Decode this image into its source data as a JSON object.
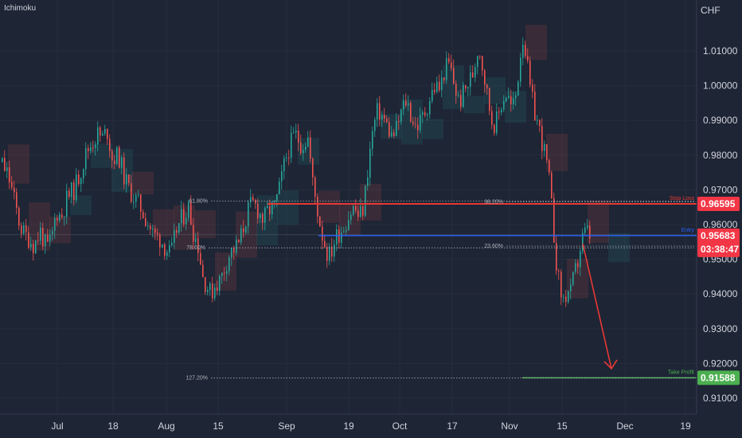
{
  "chart_data": {
    "type": "candlestick",
    "indicator_label": "Ichimoku",
    "currency": "CHF",
    "x_tick_labels": [
      "Jul",
      "18",
      "Aug",
      "15",
      "Sep",
      "19",
      "Oct",
      "17",
      "Nov",
      "15",
      "Dec",
      "19"
    ],
    "y_tick_labels": [
      "1.01000",
      "1.00000",
      "0.99000",
      "0.98000",
      "0.97000",
      "0.96000",
      "0.95000",
      "0.94000",
      "0.93000",
      "0.92000",
      "0.91000"
    ],
    "ylim": [
      0.9035,
      1.0195
    ],
    "colors": {
      "up": "#26a69a",
      "down": "#ef5350",
      "stop": "#e53935",
      "entry": "#2962ff",
      "target": "#4caf50",
      "price_tag": "#f23645",
      "background": "#1e2535"
    },
    "price_path": [
      [
        0,
        0.978
      ],
      [
        10,
        0.974
      ],
      [
        18,
        0.966
      ],
      [
        24,
        0.96
      ],
      [
        30,
        0.957
      ],
      [
        36,
        0.956
      ],
      [
        42,
        0.954
      ],
      [
        50,
        0.958
      ],
      [
        58,
        0.953
      ],
      [
        64,
        0.956
      ],
      [
        70,
        0.964
      ],
      [
        76,
        0.962
      ],
      [
        84,
        0.968
      ],
      [
        92,
        0.97
      ],
      [
        100,
        0.975
      ],
      [
        108,
        0.981
      ],
      [
        116,
        0.984
      ],
      [
        122,
        0.986
      ],
      [
        128,
        0.985
      ],
      [
        134,
        0.987
      ],
      [
        140,
        0.979
      ],
      [
        148,
        0.98
      ],
      [
        156,
        0.973
      ],
      [
        162,
        0.97
      ],
      [
        170,
        0.967
      ],
      [
        178,
        0.964
      ],
      [
        186,
        0.96
      ],
      [
        192,
        0.957
      ],
      [
        200,
        0.956
      ],
      [
        208,
        0.953
      ],
      [
        214,
        0.951
      ],
      [
        220,
        0.958
      ],
      [
        228,
        0.962
      ],
      [
        236,
        0.965
      ],
      [
        242,
        0.958
      ],
      [
        248,
        0.954
      ],
      [
        254,
        0.945
      ],
      [
        260,
        0.942
      ],
      [
        264,
        0.94
      ],
      [
        270,
        0.943
      ],
      [
        276,
        0.944
      ],
      [
        282,
        0.948
      ],
      [
        288,
        0.952
      ],
      [
        294,
        0.953
      ],
      [
        300,
        0.955
      ],
      [
        306,
        0.96
      ],
      [
        312,
        0.965
      ],
      [
        318,
        0.966
      ],
      [
        324,
        0.964
      ],
      [
        330,
        0.961
      ],
      [
        336,
        0.964
      ],
      [
        344,
        0.965
      ],
      [
        350,
        0.97
      ],
      [
        356,
        0.977
      ],
      [
        362,
        0.982
      ],
      [
        370,
        0.986
      ],
      [
        378,
        0.983
      ],
      [
        386,
        0.985
      ],
      [
        392,
        0.972
      ],
      [
        398,
        0.964
      ],
      [
        404,
        0.957
      ],
      [
        410,
        0.952
      ],
      [
        414,
        0.951
      ],
      [
        420,
        0.956
      ],
      [
        426,
        0.958
      ],
      [
        432,
        0.96
      ],
      [
        438,
        0.963
      ],
      [
        444,
        0.965
      ],
      [
        450,
        0.962
      ],
      [
        456,
        0.965
      ],
      [
        462,
        0.978
      ],
      [
        468,
        0.988
      ],
      [
        474,
        0.993
      ],
      [
        480,
        0.991
      ],
      [
        486,
        0.988
      ],
      [
        492,
        0.985
      ],
      [
        498,
        0.988
      ],
      [
        504,
        0.993
      ],
      [
        510,
        0.996
      ],
      [
        516,
        0.991
      ],
      [
        522,
        0.988
      ],
      [
        528,
        0.99
      ],
      [
        534,
        0.993
      ],
      [
        540,
        0.997
      ],
      [
        546,
        1.0
      ],
      [
        552,
        0.999
      ],
      [
        558,
        1.005
      ],
      [
        564,
        1.006
      ],
      [
        570,
        1.0
      ],
      [
        576,
        0.995
      ],
      [
        582,
        0.998
      ],
      [
        588,
        1.001
      ],
      [
        594,
        1.004
      ],
      [
        600,
        1.012
      ],
      [
        606,
        1.005
      ],
      [
        612,
        0.996
      ],
      [
        618,
        0.989
      ],
      [
        624,
        0.99
      ],
      [
        630,
        0.996
      ],
      [
        636,
        0.998
      ],
      [
        642,
        0.993
      ],
      [
        648,
        0.998
      ],
      [
        652,
        1.008
      ],
      [
        656,
        1.014
      ],
      [
        660,
        1.009
      ],
      [
        664,
        1.0
      ],
      [
        670,
        0.993
      ],
      [
        676,
        0.988
      ],
      [
        682,
        0.982
      ],
      [
        688,
        0.975
      ],
      [
        692,
        0.965
      ],
      [
        696,
        0.954
      ],
      [
        700,
        0.945
      ],
      [
        704,
        0.94
      ],
      [
        708,
        0.938
      ],
      [
        712,
        0.941
      ],
      [
        716,
        0.94
      ],
      [
        720,
        0.945
      ],
      [
        724,
        0.948
      ],
      [
        728,
        0.953
      ],
      [
        732,
        0.957
      ],
      [
        736,
        0.958
      ],
      [
        740,
        0.9568
      ]
    ],
    "fib_levels": [
      {
        "label": "61.80%",
        "value": 0.9668
      },
      {
        "label": "38.20%",
        "value": 0.9665
      },
      {
        "label": "78.60%",
        "value": 0.9533
      },
      {
        "label": "23.60%",
        "value": 0.9538
      },
      {
        "label": "127.20%",
        "value": 0.9158
      }
    ],
    "levels": {
      "stop_loss": {
        "label": "Stop Loss",
        "value": 0.96595
      },
      "entry": {
        "label": "Entry",
        "value": 0.95683
      },
      "take_profit": {
        "label": "Take Profit",
        "value": 0.91588
      }
    },
    "price_tags": {
      "stop": "0.96595",
      "current": "0.95683",
      "countdown": "03:38:47",
      "target": "0.91588"
    },
    "arrow": {
      "from_value": 0.9545,
      "to_value": 0.9185
    }
  }
}
